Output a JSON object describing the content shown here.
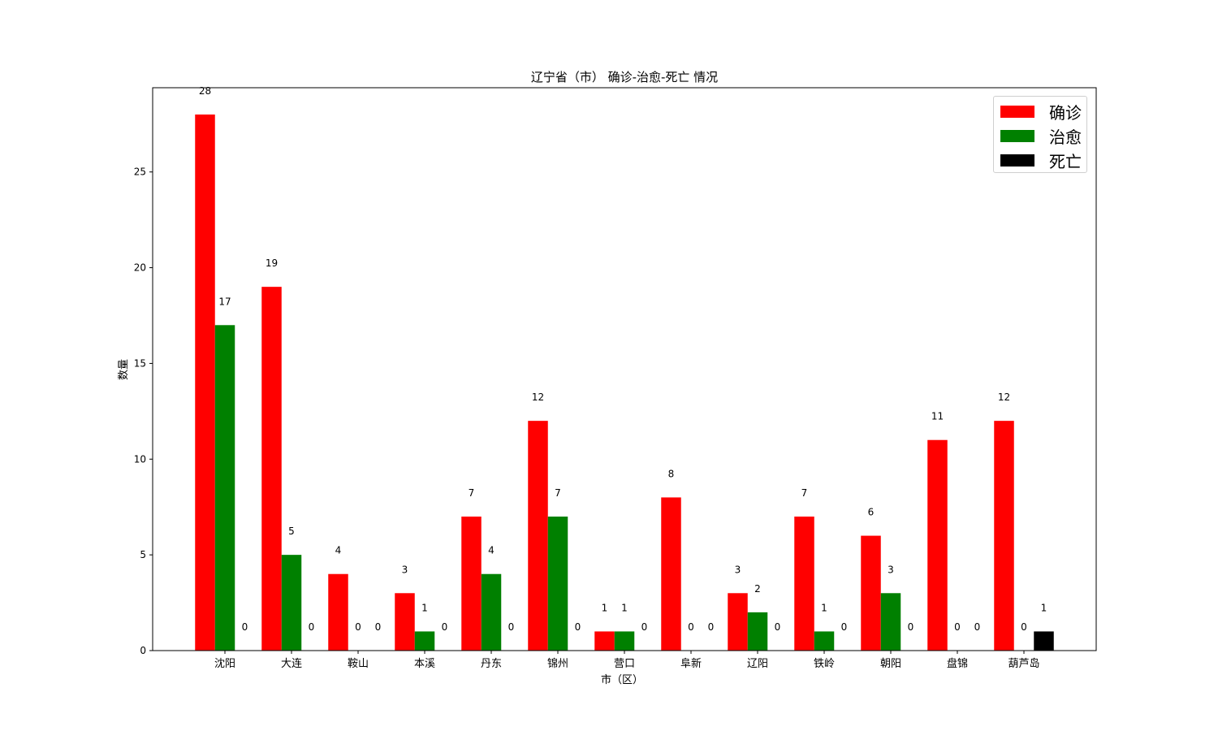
{
  "chart_data": {
    "type": "bar",
    "title": "辽宁省（市） 确诊-治愈-死亡 情况",
    "xlabel": "市（区）",
    "ylabel": "数量",
    "categories": [
      "沈阳",
      "大连",
      "鞍山",
      "本溪",
      "丹东",
      "锦州",
      "营口",
      "阜新",
      "辽阳",
      "铁岭",
      "朝阳",
      "盘锦",
      "葫芦岛"
    ],
    "series": [
      {
        "name": "确诊",
        "color": "#ff0000",
        "values": [
          28,
          19,
          4,
          3,
          7,
          12,
          1,
          8,
          3,
          7,
          6,
          11,
          12
        ]
      },
      {
        "name": "治愈",
        "color": "#008000",
        "values": [
          17,
          5,
          0,
          1,
          4,
          7,
          1,
          0,
          2,
          1,
          3,
          0,
          0
        ]
      },
      {
        "name": "死亡",
        "color": "#000000",
        "values": [
          0,
          0,
          0,
          0,
          0,
          0,
          0,
          0,
          0,
          0,
          0,
          0,
          1
        ]
      }
    ],
    "yticks": [
      0,
      5,
      10,
      15,
      20,
      25
    ],
    "ylim": [
      0,
      29.4
    ],
    "legend": "top-right",
    "grid": false
  }
}
